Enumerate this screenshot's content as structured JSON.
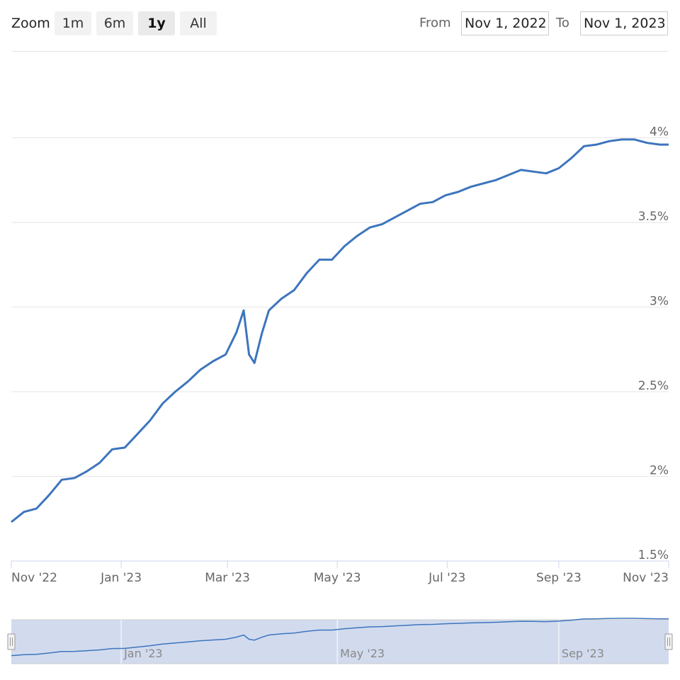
{
  "toolbar": {
    "zoom_label": "Zoom",
    "buttons": [
      {
        "label": "1m",
        "active": false
      },
      {
        "label": "6m",
        "active": false
      },
      {
        "label": "1y",
        "active": true
      },
      {
        "label": "All",
        "active": false
      }
    ],
    "from_label": "From",
    "from_value": "Nov 1, 2022",
    "to_label": "To",
    "to_value": "Nov 1, 2023"
  },
  "colors": {
    "line": "#3d75bd",
    "grid": "#e6e6e6",
    "navigator_fill": "#d2dbee",
    "navigator_border": "#cccccc"
  },
  "chart_data": {
    "type": "line",
    "title": "",
    "xlabel": "",
    "ylabel": "",
    "x_range": [
      "2022-11-01",
      "2023-11-01"
    ],
    "ylim": [
      1.5,
      4.0
    ],
    "y_ticks": [
      "1.5%",
      "2%",
      "2.5%",
      "3%",
      "3.5%",
      "4%"
    ],
    "y_tick_values": [
      1.5,
      2.0,
      2.5,
      3.0,
      3.5,
      4.0
    ],
    "x_tick_labels": [
      "Nov '22",
      "Jan '23",
      "Mar '23",
      "May '23",
      "Jul '23",
      "Sep '23",
      "Nov '23"
    ],
    "x_tick_dates": [
      "2022-11-01",
      "2023-01-01",
      "2023-03-01",
      "2023-05-01",
      "2023-07-01",
      "2023-09-01",
      "2023-11-01"
    ],
    "grid": true,
    "legend": "none",
    "series": [
      {
        "x": [
          "2022-11-01",
          "2022-11-08",
          "2022-11-15",
          "2022-11-22",
          "2022-11-29",
          "2022-12-06",
          "2022-12-13",
          "2022-12-20",
          "2022-12-27",
          "2023-01-03",
          "2023-01-10",
          "2023-01-17",
          "2023-01-24",
          "2023-01-31",
          "2023-02-07",
          "2023-02-14",
          "2023-02-21",
          "2023-02-28",
          "2023-03-06",
          "2023-03-10",
          "2023-03-13",
          "2023-03-16",
          "2023-03-20",
          "2023-03-24",
          "2023-03-31",
          "2023-04-07",
          "2023-04-14",
          "2023-04-21",
          "2023-04-28",
          "2023-05-05",
          "2023-05-12",
          "2023-05-19",
          "2023-05-26",
          "2023-06-02",
          "2023-06-09",
          "2023-06-16",
          "2023-06-23",
          "2023-06-30",
          "2023-07-07",
          "2023-07-14",
          "2023-07-21",
          "2023-07-28",
          "2023-08-04",
          "2023-08-11",
          "2023-08-18",
          "2023-08-25",
          "2023-09-01",
          "2023-09-08",
          "2023-09-15",
          "2023-09-22",
          "2023-09-29",
          "2023-10-06",
          "2023-10-13",
          "2023-10-20",
          "2023-10-27",
          "2023-11-01"
        ],
        "values": [
          1.73,
          1.79,
          1.81,
          1.89,
          1.98,
          1.99,
          2.03,
          2.08,
          2.16,
          2.17,
          2.25,
          2.33,
          2.43,
          2.5,
          2.56,
          2.63,
          2.68,
          2.72,
          2.85,
          2.98,
          2.72,
          2.67,
          2.84,
          2.98,
          3.05,
          3.1,
          3.2,
          3.28,
          3.28,
          3.36,
          3.42,
          3.47,
          3.49,
          3.53,
          3.57,
          3.61,
          3.62,
          3.66,
          3.68,
          3.71,
          3.73,
          3.75,
          3.78,
          3.81,
          3.8,
          3.79,
          3.82,
          3.88,
          3.95,
          3.96,
          3.98,
          3.99,
          3.99,
          3.97,
          3.96,
          3.96
        ]
      }
    ],
    "navigator_labels": [
      "Jan '23",
      "May '23",
      "Sep '23"
    ],
    "navigator_label_dates": [
      "2023-01-01",
      "2023-05-01",
      "2023-09-01"
    ]
  }
}
